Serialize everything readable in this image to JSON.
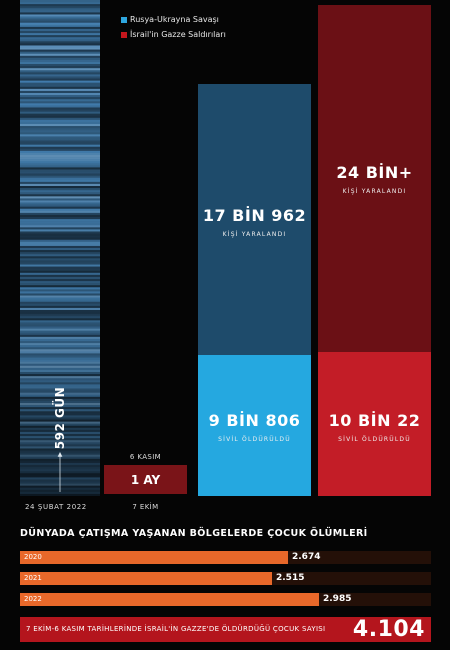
{
  "legend": [
    {
      "label": "Rusya-Ukrayna Savaşı",
      "color": "#2ea6de"
    },
    {
      "label": "İsrail'in Gazze Saldırıları",
      "color": "#c4161c"
    }
  ],
  "timeline": {
    "days_label": "592 GÜN",
    "start_date": "24 ŞUBAT 2022",
    "gaza_start": "6 KASIM",
    "gaza_duration": "1 AY",
    "gaza_end": "7 EKİM"
  },
  "ukraine": {
    "injured": "17 BİN 962",
    "injured_caption": "KİŞİ YARALANDI",
    "killed": "9 BİN 806",
    "killed_caption": "SİVİL ÖLDÜRÜLDÜ",
    "colors": {
      "injured": "#1e4b6b",
      "killed": "#25a8e0"
    }
  },
  "gaza": {
    "injured": "24 BİN+",
    "injured_caption": "KİŞİ YARALANDI",
    "killed": "10 BİN 22",
    "killed_caption": "SİVİL ÖLDÜRÜLDÜ",
    "colors": {
      "injured": "#6b1015",
      "killed": "#c31d27"
    }
  },
  "child_deaths": {
    "title": "DÜNYADA ÇATIŞMA YAŞANAN BÖLGELERDE ÇOCUK ÖLÜMLERİ",
    "total_caption": "7 EKİM-6 KASIM TARİHLERİNDE İSRAİL'İN GAZZE'DE ÖLDÜRDÜĞÜ ÇOCUK SAYISI",
    "total_value": "4.104"
  },
  "chart_data": [
    {
      "type": "bar",
      "series": [
        {
          "name": "Rusya-Ukrayna Savaşı",
          "injured": 17962,
          "killed": 9806,
          "injured_label": "17 BİN 962",
          "killed_label": "9 BİN 806"
        },
        {
          "name": "İsrail'in Gazze Saldırıları",
          "injured": 24000,
          "killed": 10022,
          "injured_label": "24 BİN+",
          "killed_label": "10 BİN 22"
        }
      ]
    },
    {
      "type": "bar",
      "title": "DÜNYADA ÇATIŞMA YAŞANAN BÖLGELERDE ÇOCUK ÖLÜMLERİ",
      "categories": [
        "2020",
        "2021",
        "2022"
      ],
      "values": [
        2674,
        2515,
        2985
      ],
      "labels": [
        "2.674",
        "2.515",
        "2.985"
      ],
      "xlim": [
        0,
        4104
      ]
    }
  ]
}
